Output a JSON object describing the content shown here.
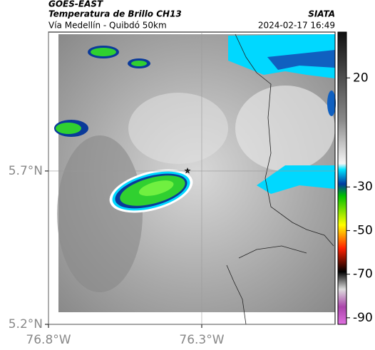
{
  "header": {
    "source": "GOES-EAST",
    "title": "Temperatura de Brillo CH13",
    "subtitle": "Vía Medellín - Quibdó 50km",
    "brand": "SIATA",
    "timestamp": "2024-02-17 16:49"
  },
  "map": {
    "xlim": [
      -76.8,
      -75.865
    ],
    "ylim": [
      5.2,
      6.153
    ],
    "xticks": [
      {
        "value": -76.8,
        "label": "76.8°W"
      },
      {
        "value": -76.3,
        "label": "76.3°W"
      }
    ],
    "yticks": [
      {
        "value": 5.7,
        "label": "5.7°N"
      },
      {
        "value": 5.2,
        "label": "5.2°N"
      }
    ],
    "grid": true
  },
  "colorbar": {
    "clim": [
      -93,
      41
    ],
    "ticks": [
      20,
      -30,
      -50,
      -70,
      -90
    ]
  }
}
